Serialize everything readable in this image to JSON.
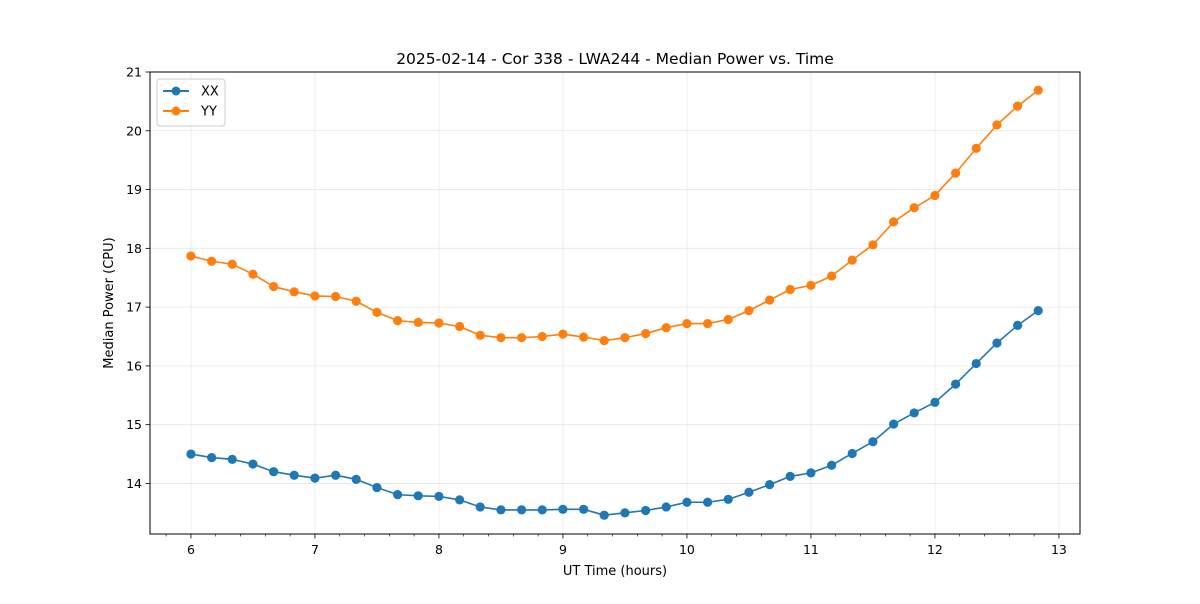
{
  "chart_data": {
    "type": "line",
    "title": "2025-02-14 - Cor 338 - LWA244 - Median Power vs. Time",
    "xlabel": "UT Time (hours)",
    "ylabel": "Median Power (CPU)",
    "xlim": [
      5.67,
      13.17
    ],
    "ylim": [
      13.14,
      21.0
    ],
    "xticks": [
      6,
      7,
      8,
      9,
      10,
      11,
      12,
      13
    ],
    "yticks": [
      14,
      15,
      16,
      17,
      18,
      19,
      20,
      21
    ],
    "grid": true,
    "legend_position": "upper-left",
    "x": [
      6.0,
      6.167,
      6.333,
      6.5,
      6.667,
      6.833,
      7.0,
      7.167,
      7.333,
      7.5,
      7.667,
      7.833,
      8.0,
      8.167,
      8.333,
      8.5,
      8.667,
      8.833,
      9.0,
      9.167,
      9.333,
      9.5,
      9.667,
      9.833,
      10.0,
      10.167,
      10.333,
      10.5,
      10.667,
      10.833,
      11.0,
      11.167,
      11.333,
      11.5,
      11.667,
      11.833,
      12.0,
      12.167,
      12.333,
      12.5,
      12.667,
      12.833
    ],
    "series": [
      {
        "name": "XX",
        "color": "#1f77b4",
        "values": [
          14.5,
          14.44,
          14.41,
          14.33,
          14.2,
          14.14,
          14.09,
          14.14,
          14.07,
          13.93,
          13.81,
          13.79,
          13.78,
          13.72,
          13.6,
          13.55,
          13.55,
          13.55,
          13.56,
          13.56,
          13.46,
          13.5,
          13.54,
          13.6,
          13.68,
          13.68,
          13.73,
          13.85,
          13.98,
          14.12,
          14.18,
          14.31,
          14.51,
          14.71,
          15.01,
          15.2,
          15.38,
          15.69,
          16.04,
          16.39,
          16.69,
          16.94
        ]
      },
      {
        "name": "YY",
        "color": "#ff7f0e",
        "values": [
          17.87,
          17.78,
          17.73,
          17.56,
          17.35,
          17.26,
          17.19,
          17.18,
          17.1,
          16.91,
          16.77,
          16.74,
          16.73,
          16.67,
          16.52,
          16.48,
          16.48,
          16.5,
          16.54,
          16.49,
          16.43,
          16.48,
          16.55,
          16.65,
          16.72,
          16.72,
          16.79,
          16.94,
          17.12,
          17.3,
          17.37,
          17.53,
          17.8,
          18.06,
          18.45,
          18.69,
          18.9,
          19.28,
          19.7,
          20.1,
          20.42,
          20.69
        ]
      }
    ]
  }
}
